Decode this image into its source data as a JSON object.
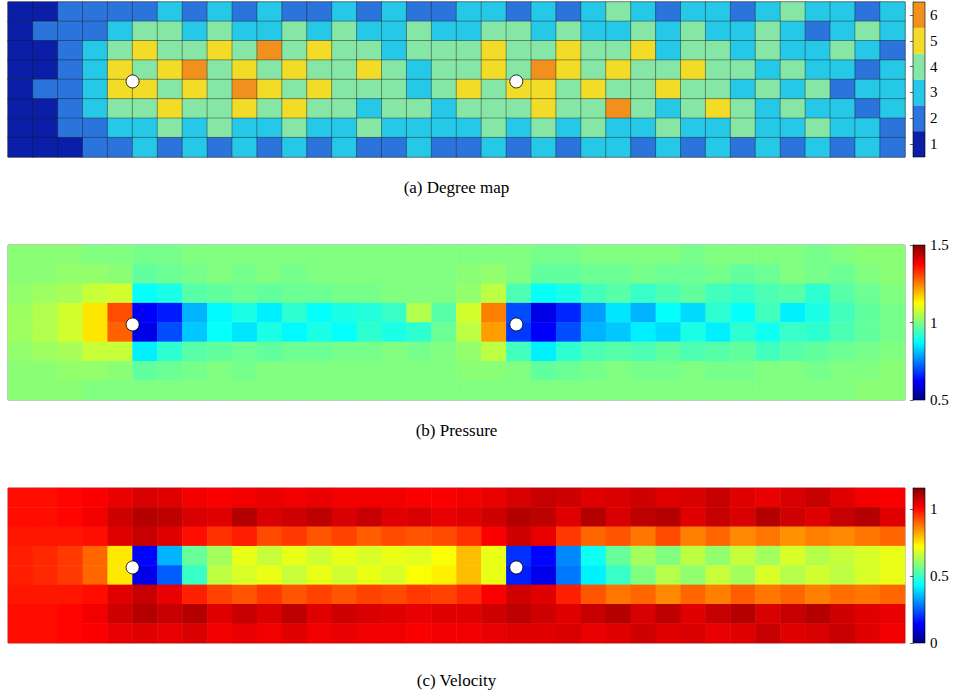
{
  "chart_data": [
    {
      "type": "heatmap",
      "title": "(a) Degree map",
      "tick_labels": false,
      "obstacles": [
        [
          5.0,
          3.9
        ],
        [
          20.4,
          3.9
        ]
      ],
      "colorbar": {
        "range": [
          0.5,
          6.5
        ],
        "ticks": [
          1,
          2,
          3,
          4,
          5,
          6
        ],
        "colors": [
          "#0a1ea8",
          "#2a74dc",
          "#25c8e6",
          "#86e6a6",
          "#f2dc28",
          "#f2901e"
        ]
      },
      "values": [
        [
          1,
          1,
          2,
          2,
          2,
          2,
          3,
          2,
          3,
          2,
          3,
          2,
          2,
          3,
          2,
          3,
          2,
          2,
          3,
          3,
          2,
          3,
          2,
          3,
          4,
          3,
          2,
          3,
          3,
          2,
          3,
          4,
          3,
          3,
          2,
          3
        ],
        [
          1,
          2,
          2,
          2,
          3,
          4,
          4,
          3,
          4,
          3,
          3,
          4,
          3,
          4,
          3,
          3,
          4,
          3,
          3,
          4,
          4,
          3,
          4,
          3,
          3,
          4,
          3,
          4,
          3,
          3,
          4,
          3,
          2,
          3,
          4,
          3
        ],
        [
          1,
          1,
          2,
          3,
          4,
          5,
          4,
          4,
          5,
          4,
          6,
          4,
          5,
          4,
          4,
          3,
          4,
          4,
          4,
          5,
          4,
          4,
          5,
          4,
          4,
          5,
          3,
          4,
          4,
          3,
          4,
          3,
          3,
          4,
          3,
          2
        ],
        [
          1,
          1,
          2,
          3,
          5,
          4,
          5,
          6,
          4,
          5,
          4,
          5,
          4,
          4,
          5,
          4,
          3,
          4,
          4,
          5,
          4,
          6,
          5,
          4,
          5,
          4,
          4,
          5,
          4,
          4,
          3,
          4,
          3,
          3,
          2,
          3
        ],
        [
          1,
          2,
          2,
          3,
          5,
          5,
          4,
          5,
          4,
          6,
          5,
          4,
          5,
          4,
          4,
          4,
          3,
          4,
          5,
          4,
          5,
          5,
          4,
          5,
          4,
          4,
          5,
          4,
          4,
          3,
          4,
          3,
          4,
          2,
          3,
          3
        ],
        [
          1,
          1,
          2,
          3,
          4,
          4,
          5,
          4,
          4,
          5,
          4,
          5,
          4,
          4,
          3,
          4,
          4,
          3,
          4,
          4,
          4,
          5,
          4,
          4,
          6,
          4,
          3,
          4,
          5,
          4,
          3,
          4,
          3,
          3,
          2,
          3
        ],
        [
          1,
          1,
          2,
          2,
          3,
          3,
          4,
          3,
          4,
          3,
          3,
          4,
          3,
          3,
          4,
          3,
          3,
          3,
          3,
          4,
          3,
          4,
          3,
          4,
          3,
          3,
          4,
          3,
          3,
          4,
          3,
          3,
          4,
          3,
          3,
          2
        ],
        [
          1,
          1,
          1,
          2,
          2,
          3,
          2,
          3,
          2,
          3,
          2,
          3,
          2,
          3,
          2,
          2,
          3,
          2,
          2,
          3,
          2,
          3,
          2,
          3,
          3,
          2,
          3,
          2,
          3,
          2,
          3,
          2,
          3,
          2,
          3,
          2
        ]
      ]
    },
    {
      "type": "heatmap",
      "title": "(b) Pressure",
      "tick_labels": false,
      "obstacles": [
        [
          5.0,
          3.9
        ],
        [
          20.4,
          3.9
        ]
      ],
      "colorbar": {
        "range": [
          0.5,
          1.5
        ],
        "ticks": [
          0.5,
          1,
          1.5
        ]
      },
      "values": [
        [
          1.01,
          1.01,
          1.01,
          1.0,
          1.0,
          0.99,
          0.99,
          1.0,
          1.0,
          1.0,
          1.0,
          1.0,
          1.0,
          1.0,
          1.0,
          1.0,
          1.0,
          1.0,
          1.0,
          1.0,
          1.0,
          0.99,
          0.99,
          1.0,
          1.0,
          1.0,
          1.0,
          0.99,
          1.0,
          1.0,
          1.0,
          1.0,
          0.99,
          1.0,
          1.01,
          1.01
        ],
        [
          1.01,
          1.01,
          1.02,
          1.02,
          1.01,
          0.97,
          0.98,
          0.99,
          1.0,
          0.99,
          1.0,
          0.99,
          1.0,
          1.0,
          1.0,
          1.0,
          1.0,
          1.0,
          1.01,
          1.02,
          1.0,
          0.97,
          0.97,
          0.98,
          0.98,
          0.99,
          0.98,
          0.98,
          0.99,
          0.97,
          0.98,
          1.0,
          0.99,
          0.98,
          1.0,
          1.01
        ],
        [
          1.02,
          1.03,
          1.04,
          1.07,
          1.08,
          0.88,
          0.9,
          0.96,
          0.97,
          0.98,
          0.97,
          0.98,
          0.98,
          0.99,
          0.99,
          1.0,
          1.0,
          1.0,
          1.02,
          1.06,
          0.95,
          0.88,
          0.9,
          0.94,
          0.96,
          0.93,
          0.95,
          0.97,
          0.94,
          0.93,
          0.95,
          0.96,
          0.92,
          0.96,
          0.98,
          1.0
        ],
        [
          1.03,
          1.05,
          1.08,
          1.15,
          1.3,
          0.62,
          0.65,
          0.8,
          0.87,
          0.9,
          0.86,
          0.92,
          0.88,
          0.9,
          0.91,
          0.93,
          1.05,
          0.96,
          1.08,
          1.25,
          0.7,
          0.6,
          0.66,
          0.78,
          0.85,
          0.8,
          0.88,
          0.84,
          0.92,
          0.88,
          0.94,
          0.86,
          0.9,
          0.94,
          0.97,
          0.99
        ],
        [
          1.03,
          1.05,
          1.08,
          1.15,
          1.28,
          0.6,
          0.7,
          0.82,
          0.88,
          0.85,
          0.9,
          0.87,
          0.9,
          0.88,
          0.92,
          0.9,
          0.92,
          0.98,
          1.06,
          1.22,
          0.68,
          0.62,
          0.7,
          0.8,
          0.82,
          0.86,
          0.84,
          0.9,
          0.86,
          0.92,
          0.89,
          0.93,
          0.92,
          0.95,
          0.97,
          0.99
        ],
        [
          1.02,
          1.03,
          1.04,
          1.07,
          1.07,
          0.86,
          0.92,
          0.96,
          0.97,
          0.98,
          0.97,
          0.98,
          0.98,
          0.99,
          0.99,
          1.0,
          0.99,
          1.0,
          1.02,
          1.06,
          0.94,
          0.86,
          0.92,
          0.95,
          0.96,
          0.95,
          0.97,
          0.95,
          0.96,
          0.97,
          0.94,
          0.96,
          0.97,
          0.98,
          0.99,
          1.0
        ],
        [
          1.01,
          1.01,
          1.02,
          1.02,
          1.01,
          0.97,
          0.98,
          0.99,
          1.0,
          0.99,
          1.0,
          1.0,
          1.0,
          1.0,
          1.0,
          1.0,
          1.0,
          1.0,
          1.01,
          1.01,
          1.0,
          0.97,
          0.98,
          0.99,
          1.0,
          0.99,
          0.99,
          1.0,
          0.99,
          0.99,
          1.0,
          1.0,
          0.99,
          1.0,
          1.0,
          1.01
        ],
        [
          1.01,
          1.01,
          1.01,
          1.0,
          1.0,
          1.0,
          1.0,
          1.0,
          1.0,
          1.0,
          1.0,
          1.0,
          1.0,
          1.0,
          1.0,
          1.0,
          1.0,
          1.0,
          1.0,
          1.0,
          1.0,
          1.0,
          1.0,
          1.0,
          1.0,
          1.0,
          1.0,
          1.0,
          1.0,
          1.0,
          1.0,
          1.0,
          1.0,
          1.0,
          1.01,
          1.01
        ]
      ]
    },
    {
      "type": "heatmap",
      "title": "(c) Velocity",
      "tick_labels": false,
      "obstacles": [
        [
          5.0,
          3.9
        ],
        [
          20.4,
          3.9
        ]
      ],
      "colorbar": {
        "range": [
          0,
          1.16
        ],
        "ticks": [
          0,
          0.5,
          1
        ]
      },
      "values": [
        [
          1.0,
          1.0,
          1.01,
          1.02,
          1.04,
          1.06,
          1.05,
          1.03,
          1.02,
          1.03,
          1.04,
          1.03,
          1.04,
          1.03,
          1.03,
          1.03,
          1.02,
          1.02,
          1.03,
          1.04,
          1.06,
          1.08,
          1.07,
          1.05,
          1.06,
          1.07,
          1.05,
          1.06,
          1.08,
          1.05,
          1.04,
          1.06,
          1.08,
          1.05,
          1.03,
          1.02
        ],
        [
          1.0,
          1.0,
          1.01,
          1.03,
          1.07,
          1.1,
          1.09,
          1.06,
          1.05,
          1.1,
          1.06,
          1.07,
          1.09,
          1.06,
          1.08,
          1.05,
          1.06,
          1.04,
          1.05,
          1.07,
          1.1,
          1.09,
          1.05,
          1.1,
          1.06,
          1.09,
          1.1,
          1.05,
          1.08,
          1.06,
          1.1,
          1.07,
          1.05,
          1.08,
          1.1,
          1.05
        ],
        [
          0.99,
          0.99,
          0.99,
          1.0,
          1.05,
          1.08,
          1.05,
          1.0,
          0.96,
          0.98,
          0.93,
          0.95,
          0.92,
          0.94,
          0.91,
          0.93,
          0.92,
          0.93,
          0.96,
          1.02,
          1.07,
          1.04,
          0.95,
          0.9,
          0.92,
          0.88,
          0.93,
          0.87,
          0.9,
          0.86,
          0.88,
          0.85,
          0.87,
          0.86,
          0.88,
          0.9
        ],
        [
          0.98,
          0.97,
          0.95,
          0.9,
          0.75,
          0.15,
          0.35,
          0.55,
          0.62,
          0.7,
          0.66,
          0.7,
          0.67,
          0.7,
          0.68,
          0.7,
          0.69,
          0.72,
          0.8,
          0.7,
          0.2,
          0.15,
          0.3,
          0.45,
          0.55,
          0.62,
          0.58,
          0.65,
          0.6,
          0.66,
          0.62,
          0.68,
          0.64,
          0.66,
          0.68,
          0.7
        ],
        [
          0.98,
          0.97,
          0.95,
          0.9,
          0.75,
          0.12,
          0.25,
          0.5,
          0.65,
          0.68,
          0.7,
          0.66,
          0.7,
          0.67,
          0.7,
          0.68,
          0.72,
          0.74,
          0.8,
          0.7,
          0.18,
          0.12,
          0.28,
          0.42,
          0.5,
          0.58,
          0.64,
          0.6,
          0.66,
          0.62,
          0.68,
          0.64,
          0.67,
          0.65,
          0.68,
          0.7
        ],
        [
          0.99,
          0.99,
          0.99,
          1.0,
          1.05,
          1.08,
          1.04,
          0.98,
          0.94,
          0.92,
          0.95,
          0.92,
          0.94,
          0.92,
          0.94,
          0.93,
          0.95,
          0.94,
          0.97,
          1.02,
          1.07,
          1.05,
          0.98,
          0.92,
          0.88,
          0.9,
          0.86,
          0.9,
          0.87,
          0.91,
          0.88,
          0.9,
          0.87,
          0.89,
          0.88,
          0.9
        ],
        [
          1.0,
          1.0,
          1.01,
          1.03,
          1.07,
          1.1,
          1.08,
          1.1,
          1.05,
          1.08,
          1.06,
          1.09,
          1.05,
          1.07,
          1.06,
          1.05,
          1.04,
          1.05,
          1.05,
          1.07,
          1.09,
          1.07,
          1.05,
          1.08,
          1.1,
          1.06,
          1.09,
          1.05,
          1.08,
          1.1,
          1.06,
          1.08,
          1.1,
          1.07,
          1.05,
          1.04
        ],
        [
          1.0,
          1.0,
          1.01,
          1.02,
          1.04,
          1.05,
          1.04,
          1.06,
          1.03,
          1.04,
          1.03,
          1.05,
          1.03,
          1.04,
          1.03,
          1.03,
          1.02,
          1.03,
          1.03,
          1.04,
          1.05,
          1.05,
          1.06,
          1.04,
          1.05,
          1.07,
          1.05,
          1.06,
          1.04,
          1.05,
          1.08,
          1.05,
          1.06,
          1.08,
          1.05,
          1.03
        ]
      ]
    }
  ]
}
